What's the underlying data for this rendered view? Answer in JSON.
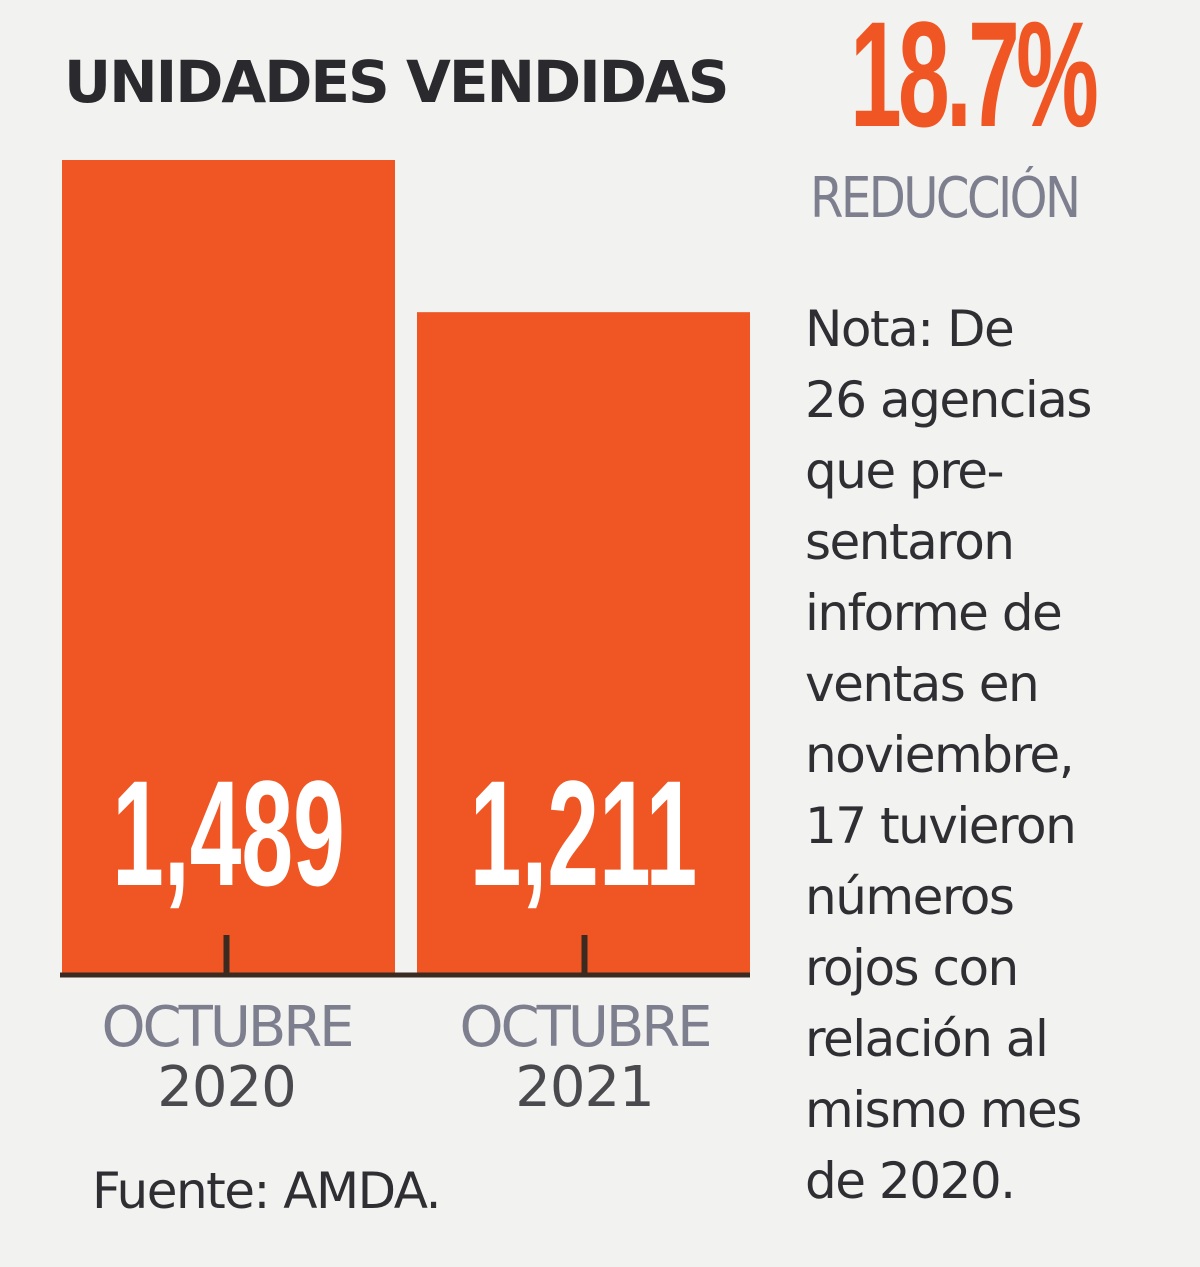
{
  "header": {
    "title": "UNIDADES VENDIDAS",
    "change_value": "18.7%",
    "change_label": "REDUCCIÓN"
  },
  "note": "Nota: De\n26 agencias\nque pre-\nsentaron\ninforme de\nventas en\nnoviembre,\n17 tuvieron\nnúmeros\nrojos con\nrelación al\nmismo mes\nde 2020.",
  "source": "Fuente: AMDA.",
  "colors": {
    "bar": "#f05623",
    "accent": "#f05623",
    "text": "#2f2f33",
    "muted": "#7d7f8e",
    "background": "#f2f2f1"
  },
  "chart_data": {
    "type": "bar",
    "title": "UNIDADES VENDIDAS",
    "categories": [
      {
        "line1": "OCTUBRE",
        "line2": "2020"
      },
      {
        "line1": "OCTUBRE",
        "line2": "2021"
      }
    ],
    "values": [
      1489,
      1211
    ],
    "value_labels": [
      "1,489",
      "1,211"
    ],
    "ylim": [
      0,
      1489
    ],
    "grid": false,
    "legend": "none"
  }
}
